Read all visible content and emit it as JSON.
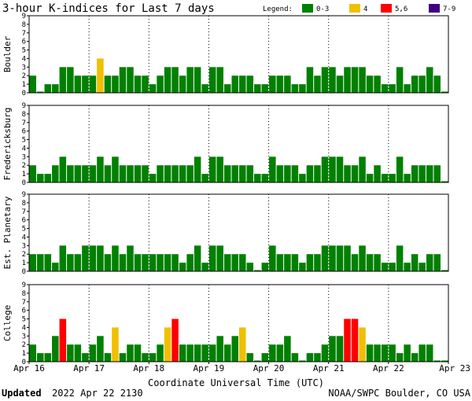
{
  "title": "3-hour K-indices for Last 7 days",
  "legend": {
    "label": "Legend:",
    "items": [
      {
        "label": "0-3",
        "color": "#008000"
      },
      {
        "label": "4",
        "color": "#f0c000"
      },
      {
        "label": "5,6",
        "color": "#ff0000"
      },
      {
        "label": "7-9",
        "color": "#400080"
      }
    ]
  },
  "xlabel": "Coordinate Universal Time (UTC)",
  "footer": {
    "updated_label": "Updated",
    "updated_value": "2022 Apr 22 2130",
    "source": "NOAA/SWPC Boulder, CO USA"
  },
  "chart_data": {
    "type": "bar",
    "x_ticks": [
      "Apr 16",
      "Apr 17",
      "Apr 18",
      "Apr 19",
      "Apr 20",
      "Apr 21",
      "Apr 22",
      "Apr 23"
    ],
    "ylim": [
      0,
      9
    ],
    "y_ticks": [
      0,
      1,
      2,
      3,
      4,
      5,
      6,
      7,
      8,
      9
    ],
    "grid": "vertical dotted at day boundaries",
    "color_scale": {
      "0-3": "#008000",
      "4": "#f0c000",
      "5-6": "#ff0000",
      "7-9": "#400080"
    },
    "series": [
      {
        "name": "Boulder",
        "values": [
          2,
          0,
          1,
          1,
          3,
          3,
          2,
          2,
          2,
          4,
          2,
          2,
          3,
          3,
          2,
          2,
          1,
          2,
          3,
          3,
          2,
          3,
          3,
          1,
          3,
          3,
          1,
          2,
          2,
          2,
          1,
          1,
          2,
          2,
          2,
          1,
          1,
          3,
          2,
          3,
          3,
          2,
          3,
          3,
          3,
          2,
          2,
          1,
          1,
          3,
          1,
          2,
          2,
          3,
          2,
          0
        ]
      },
      {
        "name": "Fredericksburg",
        "values": [
          2,
          1,
          1,
          2,
          3,
          2,
          2,
          2,
          2,
          3,
          2,
          3,
          2,
          2,
          2,
          2,
          1,
          2,
          2,
          2,
          2,
          2,
          3,
          1,
          3,
          3,
          2,
          2,
          2,
          2,
          1,
          1,
          3,
          2,
          2,
          2,
          1,
          2,
          2,
          3,
          3,
          3,
          2,
          2,
          3,
          1,
          2,
          1,
          1,
          3,
          1,
          2,
          2,
          2,
          2,
          0
        ]
      },
      {
        "name": "Est. Planetary",
        "values": [
          2,
          2,
          2,
          1,
          3,
          2,
          2,
          3,
          3,
          3,
          2,
          3,
          2,
          3,
          2,
          2,
          2,
          2,
          2,
          2,
          1,
          2,
          3,
          1,
          3,
          3,
          2,
          2,
          2,
          1,
          0,
          1,
          3,
          2,
          2,
          2,
          1,
          2,
          2,
          3,
          3,
          3,
          3,
          2,
          3,
          2,
          2,
          1,
          1,
          3,
          1,
          2,
          1,
          2,
          2,
          0
        ]
      },
      {
        "name": "College",
        "values": [
          2,
          1,
          1,
          3,
          5,
          2,
          2,
          1,
          2,
          3,
          1,
          4,
          1,
          2,
          2,
          1,
          1,
          2,
          4,
          5,
          2,
          2,
          2,
          2,
          2,
          3,
          2,
          3,
          4,
          1,
          0,
          1,
          2,
          2,
          3,
          1,
          0,
          1,
          1,
          2,
          3,
          3,
          5,
          5,
          4,
          2,
          2,
          2,
          2,
          1,
          2,
          1,
          2,
          2,
          0,
          0
        ]
      }
    ]
  }
}
